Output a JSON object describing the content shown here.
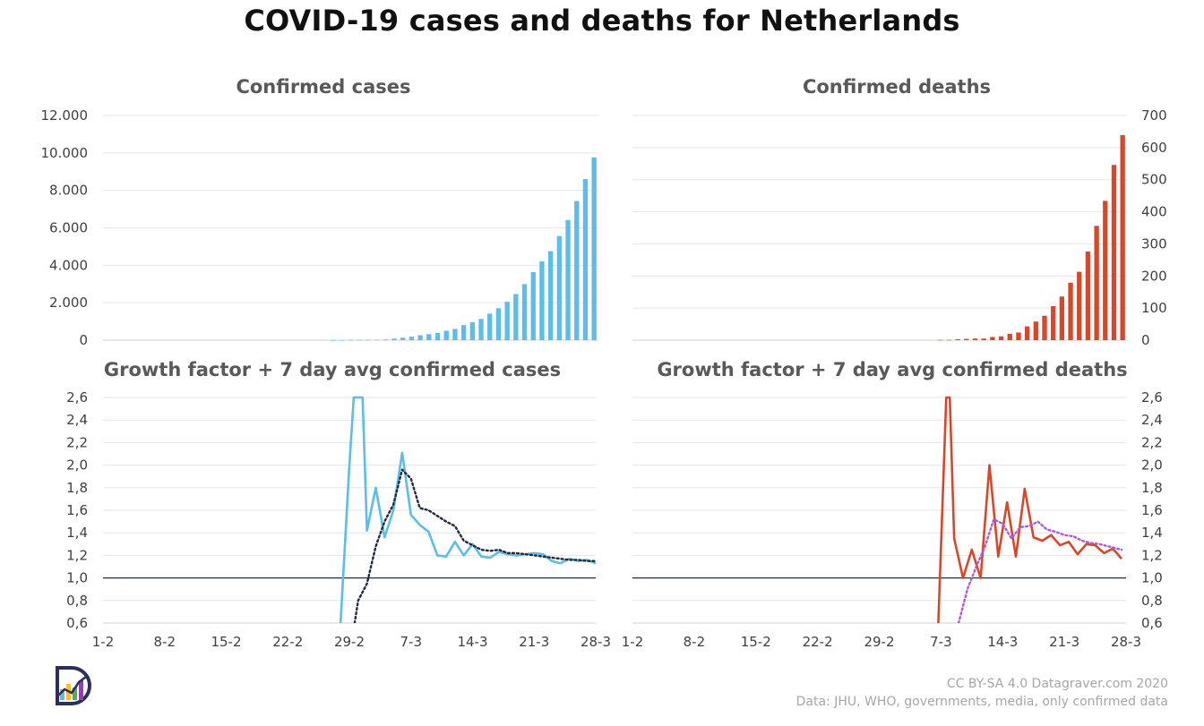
{
  "title": "COVID-19 cases and deaths for Netherlands",
  "credits": {
    "line1": "CC BY-SA 4.0  Datagraver.com 2020",
    "line2": "Data: JHU, WHO, governments, media, only confirmed data"
  },
  "colors": {
    "cases": "#5bbde8",
    "deaths": "#d9472b",
    "avg_cases": "#1f2b3d",
    "avg_deaths": "#b05ad8",
    "baseline": "#1f2b6b"
  },
  "chart_data": [
    {
      "id": "cases",
      "type": "bar",
      "title": "Confirmed cases",
      "ylim": [
        0,
        12000
      ],
      "yticks": [
        "0",
        "2.000",
        "4.000",
        "6.000",
        "8.000",
        "10.000",
        "12.000"
      ],
      "categories_start": "27-2",
      "categories_end": "28-3",
      "values": [
        1,
        2,
        7,
        10,
        18,
        24,
        38,
        82,
        128,
        188,
        265,
        321,
        382,
        503,
        603,
        804,
        959,
        1135,
        1413,
        1705,
        2051,
        2460,
        2994,
        3631,
        4204,
        4749,
        5560,
        6412,
        7431,
        8603,
        9762
      ],
      "grid": true
    },
    {
      "id": "deaths",
      "type": "bar",
      "title": "Confirmed deaths",
      "ylim": [
        0,
        700
      ],
      "yticks": [
        "0",
        "100",
        "200",
        "300",
        "400",
        "500",
        "600",
        "700"
      ],
      "categories_start": "6-3",
      "categories_end": "28-3",
      "values": [
        1,
        1,
        3,
        4,
        5,
        5,
        10,
        12,
        20,
        24,
        43,
        58,
        76,
        106,
        136,
        179,
        213,
        276,
        356,
        434,
        546,
        639
      ],
      "grid": true
    },
    {
      "id": "growth-cases",
      "type": "line",
      "title": "Growth factor + 7 day avg confirmed cases",
      "ylim": [
        0.6,
        2.6
      ],
      "yticks": [
        "0,6",
        "0,8",
        "1,0",
        "1,2",
        "1,4",
        "1,6",
        "1,8",
        "2,0",
        "2,2",
        "2,4",
        "2,6"
      ],
      "xticks": [
        "1-2",
        "8-2",
        "15-2",
        "22-2",
        "29-2",
        "7-3",
        "14-3",
        "21-3",
        "28-3"
      ],
      "baseline": 1.0,
      "series": [
        {
          "style": "solid",
          "points": [
            [
              27.0,
              0.6
            ],
            [
              28.0,
              2.0
            ],
            [
              28.5,
              2.6
            ],
            [
              29.5,
              2.6
            ],
            [
              30,
              1.42
            ],
            [
              31,
              1.8
            ],
            [
              32,
              1.36
            ],
            [
              33,
              1.6
            ],
            [
              34,
              2.11
            ],
            [
              35,
              1.56
            ],
            [
              36,
              1.47
            ],
            [
              37,
              1.41
            ],
            [
              38,
              1.2
            ],
            [
              39,
              1.19
            ],
            [
              40,
              1.32
            ],
            [
              41,
              1.2
            ],
            [
              42,
              1.3
            ],
            [
              43,
              1.19
            ],
            [
              44,
              1.18
            ],
            [
              45,
              1.23
            ],
            [
              46,
              1.21
            ],
            [
              47,
              1.2
            ],
            [
              48,
              1.21
            ],
            [
              49,
              1.22
            ],
            [
              50,
              1.21
            ],
            [
              51,
              1.15
            ],
            [
              52,
              1.13
            ],
            [
              53,
              1.17
            ],
            [
              54,
              1.15
            ],
            [
              55,
              1.16
            ],
            [
              56,
              1.13
            ]
          ]
        },
        {
          "style": "dotted",
          "points": [
            [
              28.6,
              0.6
            ],
            [
              29,
              0.8
            ],
            [
              30,
              0.95
            ],
            [
              31,
              1.28
            ],
            [
              32,
              1.5
            ],
            [
              33,
              1.65
            ],
            [
              34,
              1.96
            ],
            [
              35,
              1.88
            ],
            [
              36,
              1.62
            ],
            [
              37,
              1.6
            ],
            [
              38,
              1.55
            ],
            [
              39,
              1.5
            ],
            [
              40,
              1.46
            ],
            [
              41,
              1.33
            ],
            [
              42,
              1.29
            ],
            [
              43,
              1.25
            ],
            [
              44,
              1.24
            ],
            [
              45,
              1.25
            ],
            [
              46,
              1.22
            ],
            [
              47,
              1.22
            ],
            [
              48,
              1.21
            ],
            [
              49,
              1.2
            ],
            [
              50,
              1.19
            ],
            [
              51,
              1.18
            ],
            [
              52,
              1.17
            ],
            [
              53,
              1.16
            ],
            [
              54,
              1.16
            ],
            [
              55,
              1.15
            ],
            [
              56,
              1.15
            ]
          ]
        }
      ]
    },
    {
      "id": "growth-deaths",
      "type": "line",
      "title": "Growth factor + 7 day avg confirmed deaths",
      "ylim": [
        0.6,
        2.6
      ],
      "yticks": [
        "0,6",
        "0,8",
        "1,0",
        "1,2",
        "1,4",
        "1,6",
        "1,8",
        "2,0",
        "2,2",
        "2,4",
        "2,6"
      ],
      "xticks": [
        "1-2",
        "8-2",
        "15-2",
        "22-2",
        "29-2",
        "7-3",
        "14-3",
        "21-3",
        "28-3"
      ],
      "baseline": 1.0,
      "series": [
        {
          "style": "solid",
          "points": [
            [
              34.7,
              0.6
            ],
            [
              35.6,
              2.6
            ],
            [
              36.0,
              2.6
            ],
            [
              36.5,
              1.35
            ],
            [
              37.5,
              1.0
            ],
            [
              38.5,
              1.25
            ],
            [
              39.5,
              1.0
            ],
            [
              40.5,
              2.0
            ],
            [
              41.5,
              1.19
            ],
            [
              42.5,
              1.67
            ],
            [
              43.5,
              1.19
            ],
            [
              44.5,
              1.79
            ],
            [
              45.5,
              1.36
            ],
            [
              46.5,
              1.33
            ],
            [
              47.5,
              1.38
            ],
            [
              48.5,
              1.29
            ],
            [
              49.5,
              1.32
            ],
            [
              50.5,
              1.21
            ],
            [
              51.5,
              1.3
            ],
            [
              52.5,
              1.29
            ],
            [
              53.5,
              1.22
            ],
            [
              54.5,
              1.26
            ],
            [
              55.5,
              1.17
            ]
          ]
        },
        {
          "style": "dotted",
          "points": [
            [
              37.0,
              0.6
            ],
            [
              38.0,
              0.9
            ],
            [
              39.0,
              1.1
            ],
            [
              40.0,
              1.28
            ],
            [
              41.0,
              1.52
            ],
            [
              42.0,
              1.48
            ],
            [
              43.0,
              1.35
            ],
            [
              44.0,
              1.45
            ],
            [
              45.0,
              1.46
            ],
            [
              46.0,
              1.5
            ],
            [
              47.0,
              1.43
            ],
            [
              48.0,
              1.41
            ],
            [
              49.0,
              1.38
            ],
            [
              50.0,
              1.37
            ],
            [
              51.0,
              1.33
            ],
            [
              52.0,
              1.31
            ],
            [
              53.0,
              1.3
            ],
            [
              54.0,
              1.28
            ],
            [
              55.5,
              1.25
            ]
          ]
        }
      ]
    }
  ]
}
